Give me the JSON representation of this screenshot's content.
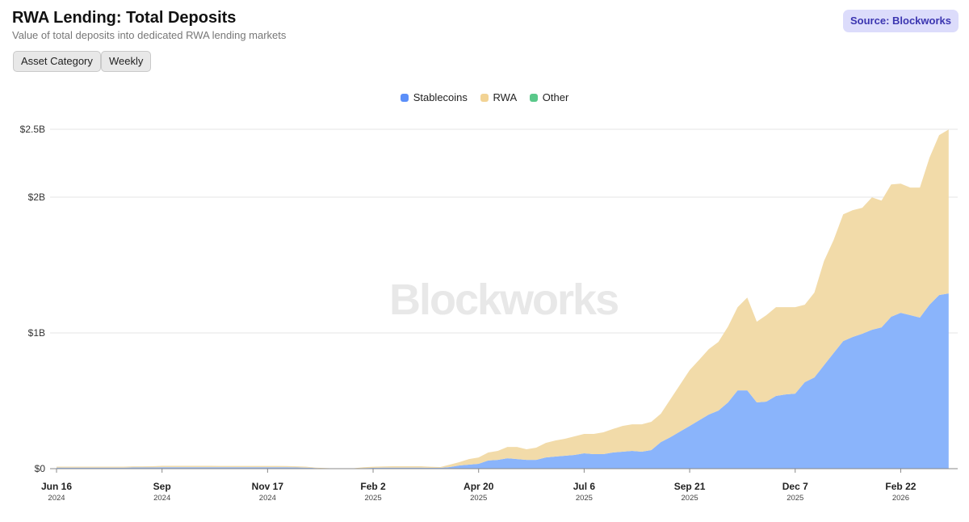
{
  "header": {
    "title": "RWA Lending: Total Deposits",
    "subtitle": "Value of total deposits into dedicated RWA lending markets",
    "source": "Source: Blockworks",
    "buttons": [
      "Asset Category",
      "Weekly"
    ]
  },
  "watermark": "Blockworks",
  "colors": {
    "Stablecoins": "#8ab4fb",
    "RWA": "#f2dba9",
    "Other": "#5fcb8c",
    "legend_blue": "#5b8ff9",
    "legend_tan": "#f2d394",
    "legend_green": "#5ac88a"
  },
  "chart_data": {
    "type": "area",
    "stacked": true,
    "title": "RWA Lending: Total Deposits",
    "xlabel": "",
    "ylabel": "",
    "unit": "USD millions",
    "ylim": [
      0,
      2500
    ],
    "yticks": [
      {
        "value": 0,
        "label": "$0"
      },
      {
        "value": 1000,
        "label": "$1B"
      },
      {
        "value": 2000,
        "label": "$2B"
      },
      {
        "value": 2500,
        "label": "$2.5B"
      }
    ],
    "x_start": "2024-06-16",
    "x_step": "weekly",
    "xticks": [
      {
        "week": 0,
        "label": "Jun 16",
        "year": "2024"
      },
      {
        "week": 11,
        "label": "Sep",
        "year": "2024"
      },
      {
        "week": 22,
        "label": "Nov 17",
        "year": "2024"
      },
      {
        "week": 33,
        "label": "Feb 2",
        "year": "2025"
      },
      {
        "week": 44,
        "label": "Apr 20",
        "year": "2025"
      },
      {
        "week": 55,
        "label": "Jul 6",
        "year": "2025"
      },
      {
        "week": 66,
        "label": "Sep 21",
        "year": "2025"
      },
      {
        "week": 77,
        "label": "Dec 7",
        "year": "2025"
      },
      {
        "week": 88,
        "label": "Feb 22",
        "year": "2026"
      }
    ],
    "legend": {
      "position": "top-center",
      "entries": [
        "Stablecoins",
        "RWA",
        "Other"
      ]
    },
    "series": [
      {
        "name": "Stablecoins",
        "values": [
          8,
          8,
          8,
          8,
          8,
          8,
          8,
          8,
          9,
          9,
          9,
          11,
          11,
          11,
          11,
          11,
          11,
          10,
          10,
          10,
          10,
          10,
          10,
          10,
          10,
          9,
          8,
          4,
          2,
          1,
          1,
          1,
          5,
          6,
          7,
          8,
          8,
          8,
          8,
          6,
          6,
          12,
          24,
          30,
          36,
          60,
          65,
          77,
          71,
          65,
          65,
          83,
          89,
          95,
          101,
          113,
          107,
          107,
          119,
          125,
          131,
          125,
          137,
          196,
          232,
          274,
          315,
          357,
          399,
          428,
          488,
          577,
          577,
          488,
          494,
          536,
          547,
          553,
          637,
          672,
          762,
          851,
          940,
          970,
          994,
          1023,
          1041,
          1119,
          1148,
          1131,
          1113,
          1208,
          1279,
          1291
        ]
      },
      {
        "name": "RWA",
        "values": [
          7,
          7,
          7,
          7,
          7,
          7,
          7,
          7,
          8,
          8,
          9,
          10,
          10,
          10,
          10,
          10,
          10,
          10,
          10,
          10,
          10,
          10,
          10,
          10,
          9,
          8,
          7,
          4,
          2,
          1,
          1,
          2,
          6,
          8,
          9,
          10,
          10,
          10,
          10,
          8,
          6,
          18,
          24,
          41,
          47,
          59,
          66,
          83,
          89,
          78,
          90,
          107,
          119,
          125,
          137,
          143,
          149,
          161,
          173,
          190,
          196,
          202,
          208,
          209,
          280,
          345,
          411,
          446,
          482,
          506,
          559,
          613,
          684,
          595,
          637,
          654,
          643,
          637,
          571,
          625,
          767,
          833,
          934,
          934,
          928,
          976,
          934,
          975,
          952,
          940,
          958,
          1083,
          1178,
          1208
        ]
      },
      {
        "name": "Other",
        "values": [
          0,
          0,
          0,
          0,
          0,
          0,
          0,
          0,
          0,
          0,
          0,
          0,
          0,
          0,
          0,
          0,
          0,
          0,
          0,
          0,
          0,
          0,
          0,
          0,
          0,
          0,
          0,
          0,
          0,
          0,
          0,
          0,
          0,
          0,
          0,
          0,
          0,
          0,
          0,
          0,
          0,
          0,
          0,
          0,
          0,
          0,
          0,
          0,
          0,
          0,
          0,
          0,
          0,
          0,
          0,
          0,
          0,
          0,
          0,
          0,
          0,
          0,
          0,
          0,
          0,
          0,
          0,
          0,
          0,
          0,
          0,
          0,
          0,
          0,
          0,
          0,
          0,
          0,
          0,
          0,
          0,
          0,
          0,
          0,
          0,
          0,
          0,
          0,
          0,
          0,
          0,
          0,
          0,
          0
        ]
      }
    ]
  }
}
